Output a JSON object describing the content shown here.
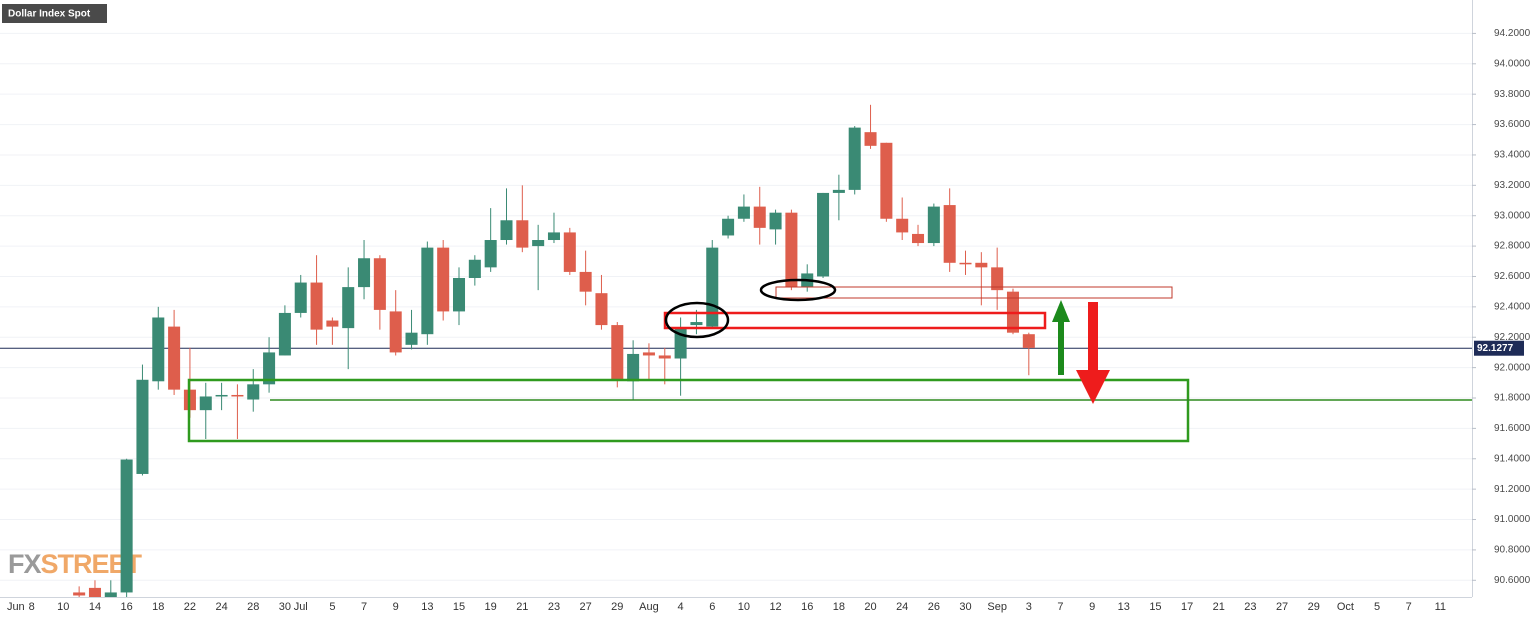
{
  "chart_data": {
    "type": "candlestick",
    "title": "Dollar Index Spot",
    "watermark": {
      "prefix": "FX",
      "suffix": "STREET"
    },
    "categories": [
      "Jun",
      "8",
      null,
      "10",
      null,
      "14",
      null,
      "16",
      null,
      "18",
      null,
      "22",
      null,
      "24",
      null,
      "28",
      null,
      "30",
      "Jul",
      null,
      "5",
      null,
      "7",
      null,
      "9",
      null,
      "13",
      null,
      "15",
      null,
      "19",
      null,
      "21",
      null,
      "23",
      null,
      "27",
      null,
      "29",
      null,
      "Aug",
      null,
      "4",
      null,
      "6",
      null,
      "10",
      null,
      "12",
      null,
      "16",
      null,
      "18",
      null,
      "20",
      null,
      "24",
      null,
      "26",
      null,
      "30",
      null,
      "Sep",
      null,
      "3",
      null,
      "7",
      null,
      "9",
      null,
      "13",
      null,
      "15",
      null,
      "17",
      null,
      "21",
      null,
      "23",
      null,
      "27",
      null,
      "29",
      null,
      "Oct",
      null,
      "5",
      null,
      "7",
      null,
      "11",
      null
    ],
    "open": [
      null,
      null,
      null,
      null,
      90.52,
      90.55,
      90.47,
      90.52,
      91.3,
      91.91,
      92.27,
      91.855,
      91.72,
      91.81,
      91.82,
      91.79,
      91.89,
      92.08,
      92.36,
      92.56,
      92.31,
      92.26,
      92.53,
      92.72,
      92.37,
      92.15,
      92.22,
      92.79,
      92.37,
      92.59,
      92.66,
      92.84,
      92.97,
      92.8,
      92.84,
      92.89,
      92.63,
      92.49,
      92.28,
      91.91,
      92.1,
      92.08,
      92.06,
      92.28,
      92.27,
      92.87,
      92.98,
      93.06,
      92.91,
      93.02,
      92.53,
      92.6,
      93.15,
      93.17,
      93.55,
      93.48,
      92.98,
      92.88,
      92.82,
      93.07,
      92.69,
      92.69,
      92.66,
      92.5,
      92.22,
      null,
      null,
      null,
      null,
      null,
      null,
      null,
      null,
      null,
      null,
      null,
      null,
      null,
      null,
      null,
      null,
      null,
      null,
      null,
      null,
      null,
      null,
      null,
      null,
      null,
      null,
      null
    ],
    "high": [
      null,
      null,
      null,
      null,
      90.56,
      90.6,
      90.6,
      91.4,
      92.02,
      92.4,
      92.38,
      92.13,
      91.9,
      91.9,
      91.89,
      91.99,
      92.2,
      92.41,
      92.61,
      92.74,
      92.33,
      92.66,
      92.84,
      92.74,
      92.51,
      92.38,
      92.83,
      92.84,
      92.66,
      92.74,
      93.05,
      93.18,
      93.2,
      92.94,
      93.02,
      92.92,
      92.77,
      92.61,
      92.3,
      92.18,
      92.16,
      92.13,
      92.33,
      92.38,
      92.84,
      93.0,
      93.14,
      93.19,
      93.04,
      93.04,
      92.68,
      93.15,
      93.27,
      93.59,
      93.73,
      93.48,
      93.12,
      92.94,
      93.08,
      93.18,
      92.77,
      92.76,
      92.79,
      92.52,
      92.23,
      null,
      null,
      null,
      null,
      null,
      null,
      null,
      null,
      null,
      null,
      null,
      null,
      null,
      null,
      null,
      null,
      null,
      null,
      null,
      null,
      null,
      null,
      null,
      null,
      null,
      null,
      null
    ],
    "low": [
      null,
      null,
      null,
      null,
      90.4,
      90.4,
      90.4,
      90.48,
      91.29,
      91.855,
      91.82,
      91.67,
      91.53,
      91.72,
      91.53,
      91.71,
      91.835,
      92.08,
      92.33,
      92.15,
      92.15,
      91.99,
      92.45,
      92.25,
      92.08,
      92.12,
      92.15,
      92.31,
      92.28,
      92.54,
      92.63,
      92.81,
      92.76,
      92.51,
      92.82,
      92.61,
      92.41,
      92.25,
      91.87,
      91.79,
      91.92,
      91.89,
      91.815,
      92.22,
      92.26,
      92.85,
      92.96,
      92.81,
      92.81,
      92.51,
      92.5,
      92.59,
      92.97,
      93.14,
      93.44,
      92.96,
      92.84,
      92.8,
      92.8,
      92.63,
      92.61,
      92.41,
      92.38,
      92.22,
      91.95,
      null,
      null,
      null,
      null,
      null,
      null,
      null,
      null,
      null,
      null,
      null,
      null,
      null,
      null,
      null,
      null,
      null,
      null,
      null,
      null,
      null,
      null,
      null,
      null,
      null,
      null,
      null
    ],
    "close": [
      null,
      null,
      null,
      null,
      90.5,
      90.45,
      90.52,
      91.395,
      91.92,
      92.33,
      91.855,
      91.72,
      91.81,
      91.82,
      91.81,
      91.89,
      92.1,
      92.36,
      92.56,
      92.25,
      92.27,
      92.53,
      92.72,
      92.38,
      92.1,
      92.23,
      92.79,
      92.37,
      92.59,
      92.71,
      92.84,
      92.97,
      92.79,
      92.84,
      92.89,
      92.63,
      92.5,
      92.28,
      91.92,
      92.09,
      92.08,
      92.06,
      92.26,
      92.3,
      92.79,
      92.98,
      93.06,
      92.92,
      93.02,
      92.53,
      92.62,
      93.15,
      93.17,
      93.58,
      93.46,
      92.98,
      92.89,
      92.82,
      93.06,
      92.69,
      92.68,
      92.66,
      92.51,
      92.23,
      92.13,
      null,
      null,
      null,
      null,
      null,
      null,
      null,
      null,
      null,
      null,
      null,
      null,
      null,
      null,
      null,
      null,
      null,
      null,
      null,
      null,
      null,
      null,
      null,
      null,
      null,
      null,
      null
    ],
    "up_color": "#3a8a74",
    "down_color": "#de5e4c",
    "ylim": [
      90.49,
      94.42
    ],
    "yticks": [
      {
        "value": 90.6,
        "label": "90.6000"
      },
      {
        "value": 90.8,
        "label": "90.8000"
      },
      {
        "value": 91.0,
        "label": "91.0000"
      },
      {
        "value": 91.2,
        "label": "91.2000"
      },
      {
        "value": 91.4,
        "label": "91.4000"
      },
      {
        "value": 91.6,
        "label": "91.6000"
      },
      {
        "value": 91.8,
        "label": "91.8000"
      },
      {
        "value": 92.0,
        "label": "92.0000"
      },
      {
        "value": 92.2,
        "label": "92.2000"
      },
      {
        "value": 92.4,
        "label": "92.4000"
      },
      {
        "value": 92.6,
        "label": "92.6000"
      },
      {
        "value": 92.8,
        "label": "92.8000"
      },
      {
        "value": 93.0,
        "label": "93.0000"
      },
      {
        "value": 93.2,
        "label": "93.2000"
      },
      {
        "value": 93.4,
        "label": "93.4000"
      },
      {
        "value": 93.6,
        "label": "93.6000"
      },
      {
        "value": 93.8,
        "label": "93.8000"
      },
      {
        "value": 94.0,
        "label": "94.0000"
      },
      {
        "value": 94.2,
        "label": "94.2000"
      }
    ],
    "grid": true,
    "last_price": 92.1277,
    "last_price_color": "#1e2b57"
  }
}
